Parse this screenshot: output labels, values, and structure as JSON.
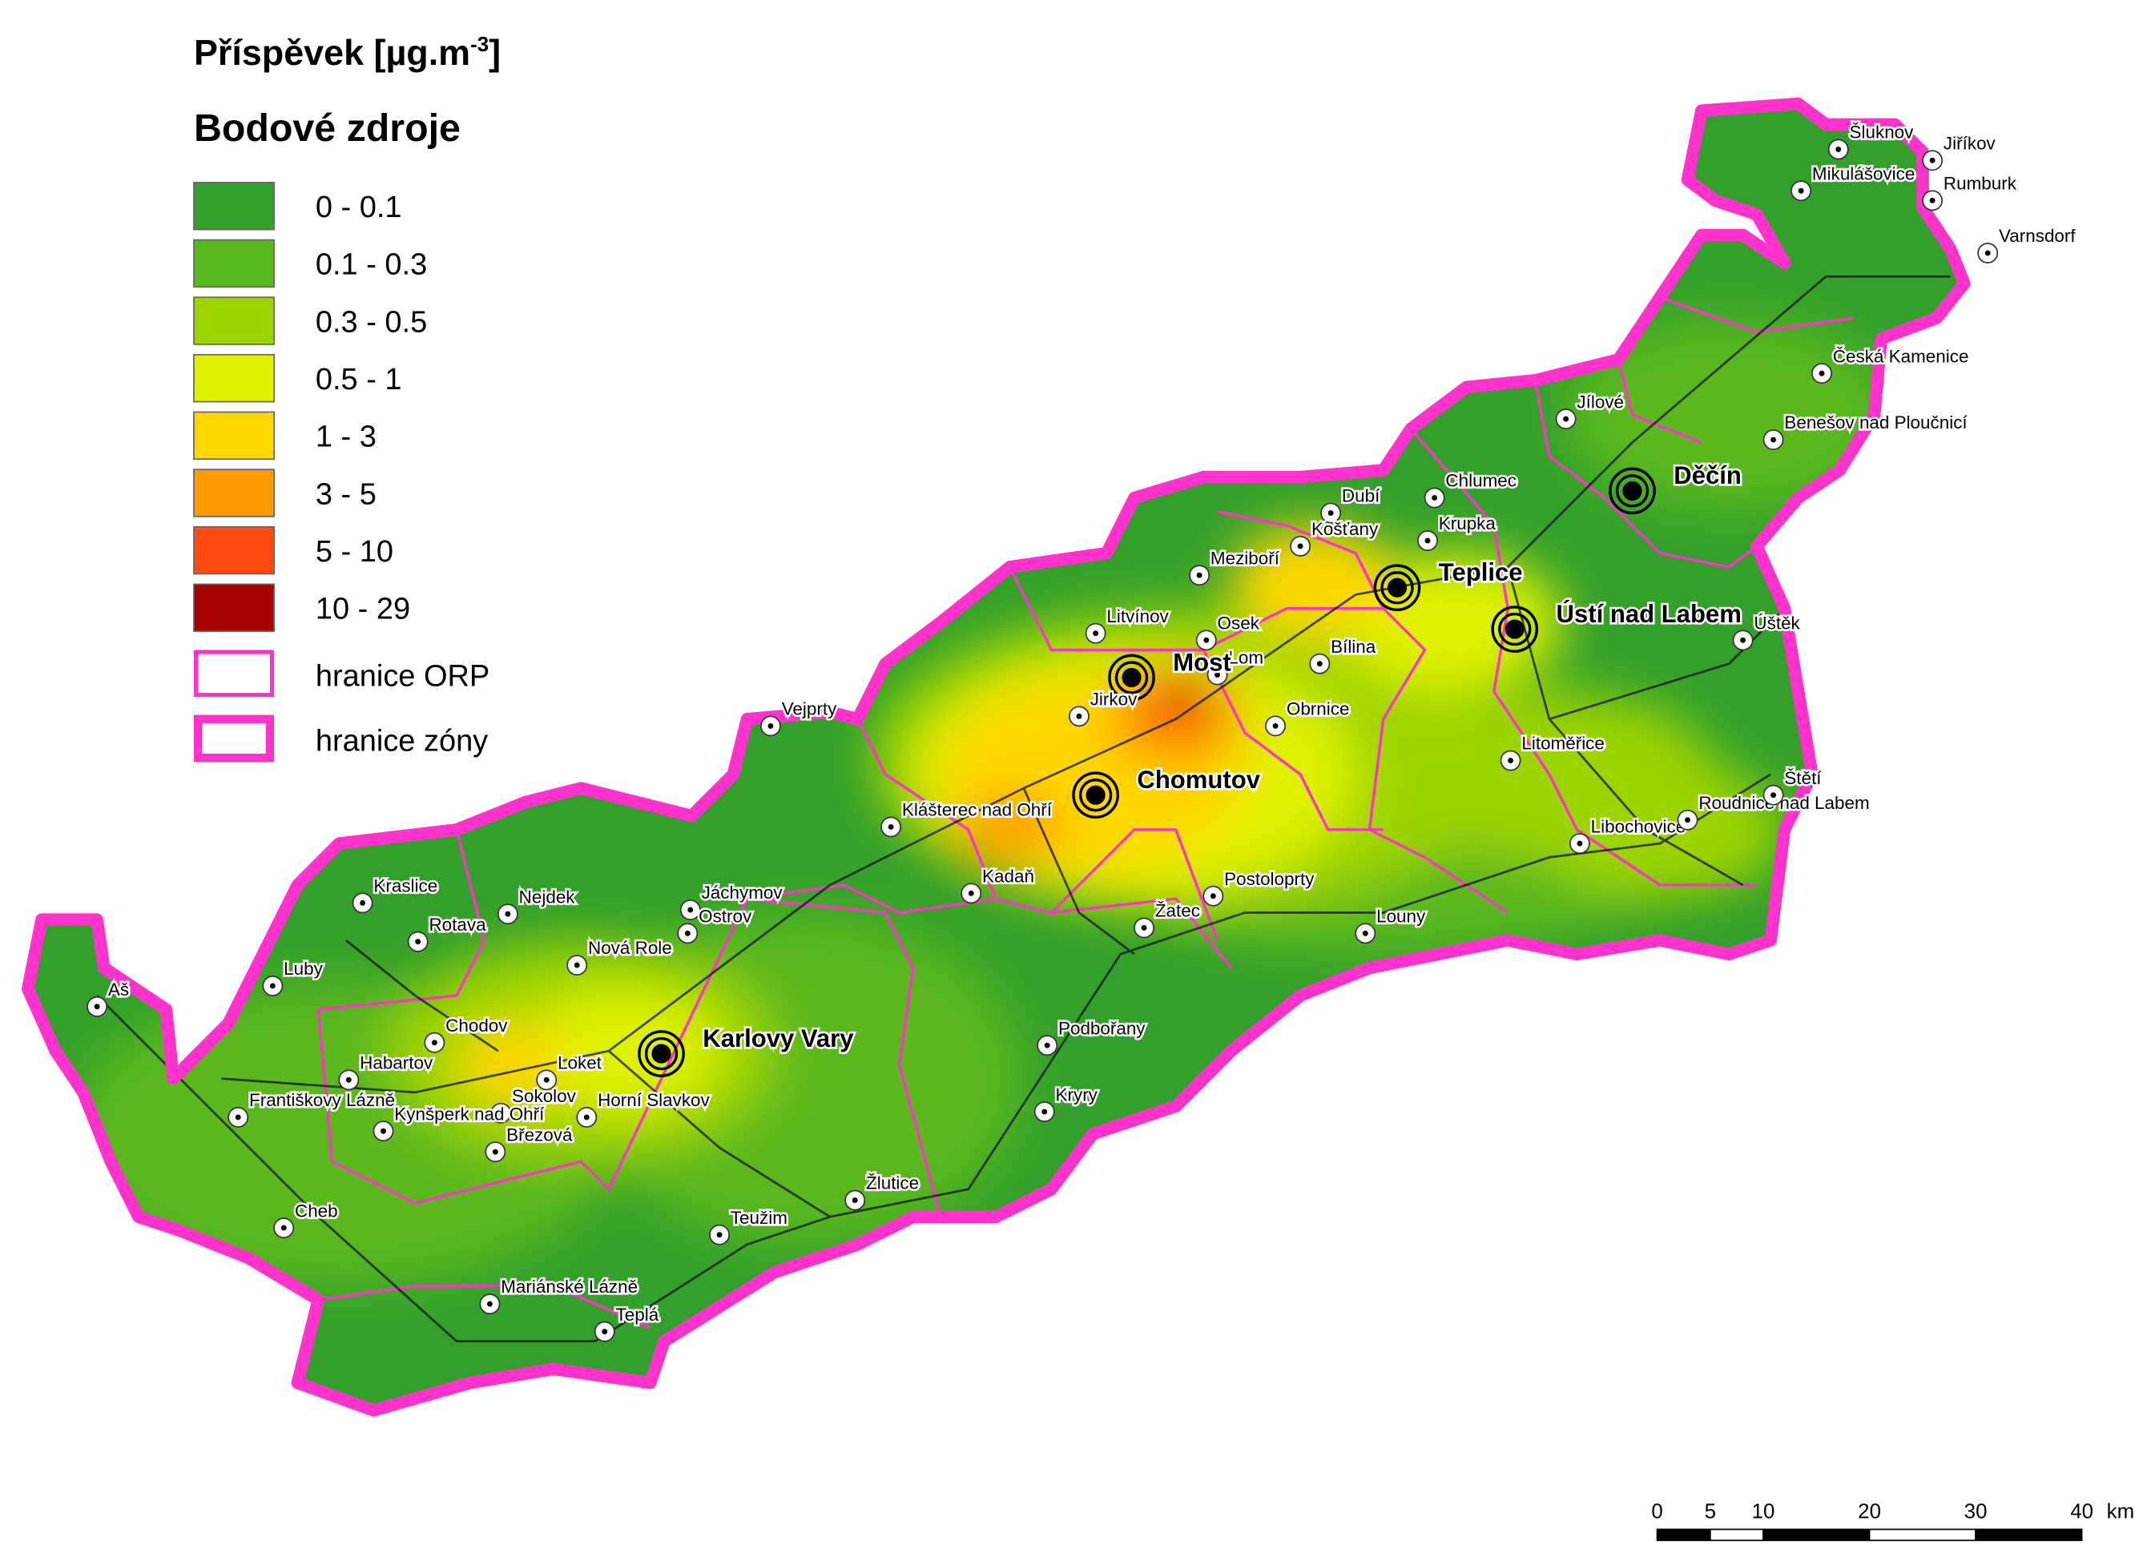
{
  "legend": {
    "title": "Příspěvek [µg.m",
    "title_sup": "-3",
    "title_end": "]",
    "subtitle": "Bodové zdroje",
    "items": [
      {
        "label": "0 - 0.1",
        "color": "#33a02c"
      },
      {
        "label": "0.1 - 0.3",
        "color": "#5ab81f"
      },
      {
        "label": "0.3 - 0.5",
        "color": "#9cd400"
      },
      {
        "label": "0.5 - 1",
        "color": "#dff200"
      },
      {
        "label": "1 - 3",
        "color": "#ffd800"
      },
      {
        "label": "3 - 5",
        "color": "#ff9a00"
      },
      {
        "label": "5 - 10",
        "color": "#ff4a10"
      },
      {
        "label": "10 - 29",
        "color": "#a80000"
      }
    ],
    "borders": [
      {
        "label": "hranice ORP",
        "color": "#ff33cc"
      },
      {
        "label": "hranice zóny",
        "color": "#ff33cc"
      }
    ]
  },
  "cities": [
    {
      "name": "Šluknov"
    },
    {
      "name": "Jiříkov"
    },
    {
      "name": "Mikulášovice"
    },
    {
      "name": "Rumburk"
    },
    {
      "name": "Varnsdorf"
    },
    {
      "name": "Česká Kamenice"
    },
    {
      "name": "Jílové"
    },
    {
      "name": "Děčín",
      "major": true
    },
    {
      "name": "Benešov nad Ploučnicí"
    },
    {
      "name": "Chlumec"
    },
    {
      "name": "Dubí"
    },
    {
      "name": "Krupka"
    },
    {
      "name": "Košťany"
    },
    {
      "name": "Teplice",
      "major": true
    },
    {
      "name": "Ústí nad Labem",
      "major": true
    },
    {
      "name": "Meziboří"
    },
    {
      "name": "Litvínov"
    },
    {
      "name": "Osek"
    },
    {
      "name": "Bílina"
    },
    {
      "name": "Lom"
    },
    {
      "name": "Most",
      "major": true
    },
    {
      "name": "Jirkov"
    },
    {
      "name": "Obrnice"
    },
    {
      "name": "Úštěk"
    },
    {
      "name": "Litoměřice"
    },
    {
      "name": "Chomutov",
      "major": true
    },
    {
      "name": "Klášterec nad Ohří"
    },
    {
      "name": "Kadaň"
    },
    {
      "name": "Vejprty"
    },
    {
      "name": "Jáchymov"
    },
    {
      "name": "Ostrov"
    },
    {
      "name": "Nejdek"
    },
    {
      "name": "Kraslice"
    },
    {
      "name": "Rotava"
    },
    {
      "name": "Nová Role"
    },
    {
      "name": "Karlovy Vary",
      "major": true
    },
    {
      "name": "Chodov"
    },
    {
      "name": "Habartov"
    },
    {
      "name": "Sokolov"
    },
    {
      "name": "Kynšperk nad Ohří"
    },
    {
      "name": "Březová"
    },
    {
      "name": "Horní Slavkov"
    },
    {
      "name": "Loket"
    },
    {
      "name": "Luby"
    },
    {
      "name": "Aš"
    },
    {
      "name": "Františkovy Lázně"
    },
    {
      "name": "Cheb"
    },
    {
      "name": "Mariánské Lázně"
    },
    {
      "name": "Teplá"
    },
    {
      "name": "Teužim"
    },
    {
      "name": "Žlutice"
    },
    {
      "name": "Podbořany"
    },
    {
      "name": "Kryry"
    },
    {
      "name": "Žatec"
    },
    {
      "name": "Postoloprty"
    },
    {
      "name": "Louny"
    },
    {
      "name": "Libochovice"
    },
    {
      "name": "Roudnice nad Labem"
    },
    {
      "name": "Štětí"
    }
  ],
  "scale_bar": {
    "ticks": [
      0,
      5,
      10,
      20,
      30,
      40
    ],
    "unit": "km"
  }
}
